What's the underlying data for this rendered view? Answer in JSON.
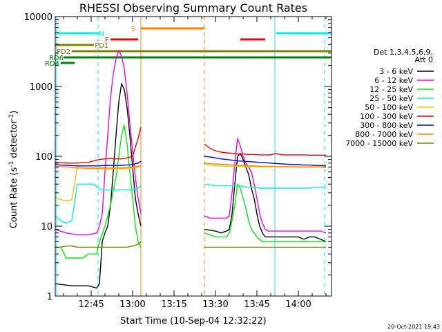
{
  "chart_data": {
    "type": "line",
    "title": "RHESSI Observing Summary Count Rates",
    "xlabel": "Start Time (10-Sep-04 12:32:22)",
    "ylabel_parts": [
      "Count Rate (s",
      "-1",
      " detector",
      "-1",
      ")"
    ],
    "x_start_min": 752,
    "xlim_min": [
      752,
      852
    ],
    "ylim": [
      1,
      10000
    ],
    "y_scale": "log",
    "x_ticks": [
      "12:45",
      "13:00",
      "13:15",
      "13:30",
      "13:45",
      "14:00"
    ],
    "x_tick_minutes": [
      765,
      780,
      795,
      810,
      825,
      840
    ],
    "y_ticks": [
      "1",
      "10",
      "100",
      "1000",
      "10000"
    ],
    "y_tick_values": [
      1,
      10,
      100,
      1000,
      10000
    ],
    "legend": {
      "header_lines": [
        "Det 1,3,4,5,6,9,",
        "Att 0"
      ],
      "items": [
        {
          "label": "3 - 6 keV",
          "color": "#000000"
        },
        {
          "label": "6 - 12 keV",
          "color": "#ee00ee"
        },
        {
          "label": "12 - 25 keV",
          "color": "#00ee00"
        },
        {
          "label": "25 - 50 keV",
          "color": "#00eeee"
        },
        {
          "label": "50 - 100 keV",
          "color": "#e8c800"
        },
        {
          "label": "100 - 300 keV",
          "color": "#ee0000"
        },
        {
          "label": "300 - 800 keV",
          "color": "#0000ee"
        },
        {
          "label": "800 - 7000 keV",
          "color": "#ff8000"
        },
        {
          "label": "7000 - 15000 keV",
          "color": "#808000"
        }
      ]
    },
    "flag_bars": [
      {
        "label": "N",
        "color": "#00eeee",
        "segments": [
          [
            752,
            768
          ],
          [
            832,
            852
          ]
        ]
      },
      {
        "label": "S",
        "color": "#ff8000",
        "segments": [
          [
            783,
            806
          ]
        ]
      },
      {
        "label": "F",
        "color": "#ee0000",
        "segments": [
          [
            772,
            782
          ],
          [
            819,
            828
          ]
        ]
      },
      {
        "label": "PD1",
        "color": "#808000",
        "segments": [
          [
            752,
            766
          ]
        ]
      },
      {
        "label": "PD2",
        "color": "#808000",
        "segments": [
          [
            758,
            852
          ]
        ]
      },
      {
        "label": "RD6",
        "color": "#008000",
        "segments": [
          [
            755,
            852
          ]
        ]
      },
      {
        "label": "RD4",
        "color": "#008000",
        "segments": [
          [
            754,
            759
          ]
        ]
      }
    ],
    "vertical_lines": [
      {
        "minute": 752.5,
        "color": "#00eeee",
        "style": "solid"
      },
      {
        "minute": 767.5,
        "color": "#00eeee",
        "style": "dashed"
      },
      {
        "minute": 783,
        "color": "#ff8000",
        "style": "solid"
      },
      {
        "minute": 806,
        "color": "#ff8000",
        "style": "dashed"
      },
      {
        "minute": 831.5,
        "color": "#00eeee",
        "style": "solid"
      },
      {
        "minute": 849.5,
        "color": "#00eeee",
        "style": "dashed"
      }
    ],
    "data_gaps": [
      [
        783,
        806
      ]
    ],
    "series": [
      {
        "name": "3 - 6 keV",
        "color": "#000000",
        "x": [
          752,
          758,
          764,
          767,
          768,
          769,
          770,
          771,
          772,
          773,
          774,
          775,
          776,
          777,
          778,
          779,
          780,
          781,
          782,
          783,
          806,
          810,
          812,
          814,
          815,
          816,
          817,
          818,
          819,
          820,
          821,
          822,
          823,
          824,
          825,
          826,
          827,
          828,
          829,
          830,
          832,
          834,
          836,
          838,
          840,
          842,
          844,
          846,
          848,
          850
        ],
        "y": [
          1.5,
          1.4,
          1.4,
          1.3,
          1.5,
          6,
          8,
          10,
          20,
          60,
          200,
          600,
          1100,
          900,
          500,
          200,
          70,
          25,
          15,
          10,
          9,
          8.5,
          8,
          8.5,
          9,
          15,
          40,
          100,
          110,
          90,
          70,
          55,
          35,
          25,
          15,
          10,
          8,
          7,
          7,
          7,
          7,
          7,
          7,
          7,
          7,
          6.5,
          7,
          7,
          6.5,
          6
        ]
      },
      {
        "name": "6 - 12 keV",
        "color": "#ee00ee",
        "x": [
          752,
          756,
          760,
          764,
          767,
          768,
          769,
          770,
          771,
          772,
          773,
          774,
          775,
          776,
          777,
          778,
          779,
          780,
          781,
          782,
          783,
          806,
          808,
          810,
          812,
          814,
          815,
          816,
          817,
          818,
          819,
          820,
          821,
          822,
          823,
          824,
          825,
          826,
          827,
          828,
          829,
          830,
          832,
          834,
          836,
          838,
          840,
          842,
          844,
          846,
          848,
          850
        ],
        "y": [
          9,
          8,
          7.5,
          7.5,
          8,
          10,
          15,
          60,
          200,
          700,
          1500,
          2500,
          3300,
          2700,
          1800,
          800,
          300,
          120,
          50,
          25,
          15,
          14,
          13,
          13,
          13,
          13,
          14,
          30,
          80,
          180,
          140,
          100,
          80,
          70,
          60,
          40,
          25,
          15,
          11,
          9,
          8.5,
          8.5,
          8.5,
          8.5,
          8.5,
          8.5,
          8.5,
          8.5,
          8.5,
          8.5,
          8.5,
          8
        ]
      },
      {
        "name": "12 - 25 keV",
        "color": "#00ee00",
        "x": [
          752,
          754,
          756,
          758,
          760,
          762,
          764,
          766,
          767,
          768,
          770,
          772,
          774,
          776,
          777,
          778,
          779,
          780,
          781,
          782,
          783,
          806,
          810,
          812,
          814,
          815,
          816,
          817,
          818,
          819,
          820,
          821,
          822,
          823,
          824,
          825,
          826,
          827,
          828,
          830,
          832,
          834,
          836,
          838,
          840,
          842,
          844,
          846,
          848,
          850
        ],
        "y": [
          5,
          5,
          3.5,
          3.5,
          3.5,
          3.5,
          4,
          4,
          4,
          6,
          10,
          20,
          50,
          200,
          280,
          150,
          60,
          25,
          10,
          6,
          5,
          8,
          7,
          7,
          7,
          8,
          12,
          20,
          40,
          35,
          25,
          18,
          12,
          9,
          8,
          7,
          6.5,
          6,
          6,
          6,
          6,
          6,
          6,
          6,
          6,
          6,
          6,
          6,
          6,
          6
        ]
      },
      {
        "name": "25 - 50 keV",
        "color": "#00eeee",
        "x": [
          752,
          754,
          756,
          758,
          760,
          762,
          764,
          766,
          768,
          770,
          772,
          774,
          776,
          778,
          780,
          782,
          783,
          806,
          808,
          810,
          812,
          814,
          816,
          818,
          820,
          822,
          824,
          826,
          828,
          830,
          832,
          834,
          836,
          838,
          840,
          842,
          844,
          846,
          848,
          850
        ],
        "y": [
          14,
          12,
          11,
          12,
          40,
          40,
          40,
          40,
          34,
          33,
          33,
          33,
          33,
          33,
          34,
          35,
          38,
          40,
          39,
          38,
          38,
          38,
          38,
          38,
          37,
          36,
          36,
          35,
          35,
          35,
          35,
          35,
          35,
          35,
          35,
          35,
          35,
          36,
          36,
          35
        ]
      },
      {
        "name": "50 - 100 keV",
        "color": "#e8c800",
        "x": [
          752,
          754,
          756,
          758,
          760,
          762,
          764,
          766,
          768,
          770,
          772,
          774,
          776,
          778,
          780,
          782,
          783,
          806,
          808,
          810,
          812,
          814,
          816,
          818,
          820,
          822,
          824,
          826,
          828,
          830,
          832,
          834,
          836,
          838,
          840,
          842,
          844,
          846,
          848,
          850
        ],
        "y": [
          26,
          24,
          23,
          24,
          70,
          68,
          66,
          66,
          66,
          66,
          66,
          66,
          66,
          67,
          68,
          70,
          72,
          78,
          75,
          73,
          73,
          72,
          72,
          72,
          71,
          71,
          71,
          71,
          71,
          71,
          71,
          71,
          71,
          71,
          71,
          71,
          71,
          71,
          71,
          70
        ]
      },
      {
        "name": "100 - 300 keV",
        "color": "#ee0000",
        "x": [
          752,
          756,
          760,
          764,
          768,
          770,
          772,
          774,
          776,
          778,
          780,
          782,
          783,
          806,
          808,
          810,
          812,
          814,
          816,
          818,
          820,
          822,
          824,
          826,
          828,
          830,
          832,
          834,
          836,
          838,
          840,
          842,
          844,
          846,
          848,
          850
        ],
        "y": [
          82,
          80,
          80,
          82,
          90,
          92,
          93,
          92,
          92,
          95,
          100,
          180,
          260,
          150,
          130,
          120,
          115,
          112,
          110,
          108,
          108,
          106,
          106,
          105,
          105,
          105,
          110,
          105,
          105,
          105,
          105,
          105,
          104,
          104,
          104,
          104
        ]
      },
      {
        "name": "300 - 800 keV",
        "color": "#0000ee",
        "x": [
          752,
          756,
          760,
          764,
          768,
          770,
          772,
          774,
          776,
          778,
          780,
          782,
          783,
          806,
          808,
          810,
          812,
          814,
          816,
          818,
          820,
          822,
          824,
          826,
          828,
          830,
          832,
          834,
          836,
          838,
          840,
          842,
          844,
          846,
          848,
          850
        ],
        "y": [
          76,
          74,
          73,
          73,
          73,
          74,
          74,
          74,
          74,
          75,
          76,
          80,
          85,
          100,
          98,
          95,
          92,
          90,
          88,
          86,
          85,
          84,
          83,
          82,
          81,
          80,
          79,
          78,
          77,
          76,
          76,
          75,
          75,
          74,
          74,
          73
        ]
      },
      {
        "name": "800 - 7000 keV",
        "color": "#ff8000",
        "x": [
          752,
          756,
          760,
          764,
          768,
          770,
          772,
          774,
          776,
          778,
          780,
          782,
          783,
          806,
          808,
          810,
          812,
          814,
          816,
          818,
          820,
          822,
          824,
          826,
          828,
          830,
          832,
          834,
          836,
          838,
          840,
          842,
          844,
          846,
          848,
          850
        ],
        "y": [
          72,
          70,
          68,
          68,
          68,
          68,
          68,
          68,
          68,
          69,
          70,
          72,
          74,
          80,
          79,
          78,
          77,
          76,
          75,
          74,
          74,
          73,
          73,
          72,
          72,
          72,
          71,
          71,
          71,
          70,
          70,
          70,
          70,
          70,
          70,
          69
        ]
      },
      {
        "name": "7000 - 15000 keV",
        "color": "#808000",
        "x": [
          752,
          754,
          756,
          758,
          760,
          762,
          764,
          766,
          768,
          770,
          772,
          774,
          776,
          778,
          780,
          782,
          783,
          806,
          808,
          810,
          812,
          814,
          816,
          818,
          820,
          822,
          824,
          826,
          828,
          830,
          832,
          834,
          836,
          838,
          840,
          842,
          844,
          846,
          848,
          850
        ],
        "y": [
          5,
          5,
          5.2,
          5.2,
          5,
          5,
          5,
          5,
          5,
          5,
          5,
          5,
          5,
          5,
          5.2,
          5.5,
          6,
          5,
          5,
          5,
          5,
          5,
          5,
          5,
          5,
          5,
          5,
          5,
          5,
          5,
          5,
          5,
          5,
          5,
          5,
          5,
          5,
          5,
          5,
          5
        ]
      }
    ]
  },
  "footer": {
    "timestamp": "20-Oct-2021 19:43"
  }
}
